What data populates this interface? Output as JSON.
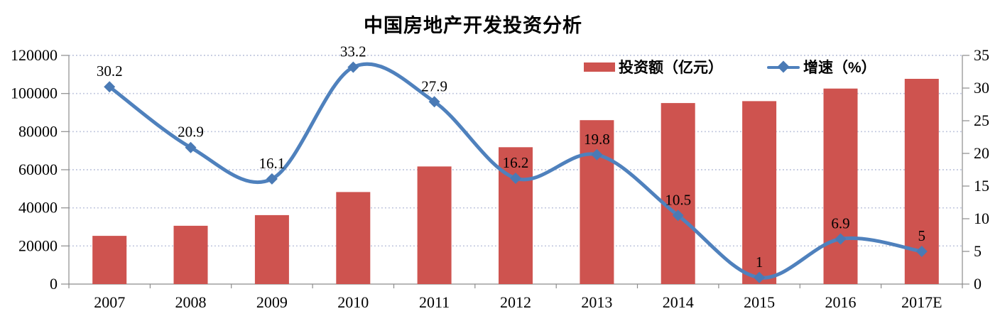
{
  "chart_data": {
    "type": "combo-bar-line",
    "title": "中国房地产开发投资分析",
    "categories": [
      "2007",
      "2008",
      "2009",
      "2010",
      "2011",
      "2012",
      "2013",
      "2014",
      "2015",
      "2016",
      "2017E"
    ],
    "series": [
      {
        "name": "投资额（亿元）",
        "type": "bar",
        "axis": "left",
        "color": "#CE534F",
        "values": [
          25300,
          30600,
          36200,
          48300,
          61700,
          71800,
          86000,
          95000,
          96000,
          102600,
          107700
        ]
      },
      {
        "name": "增速（%）",
        "type": "line",
        "axis": "right",
        "color": "#4F81BD",
        "marker": "diamond",
        "marker_color": "#4A7AB5",
        "values": [
          30.2,
          20.9,
          16.1,
          33.2,
          27.9,
          16.2,
          19.8,
          10.5,
          1,
          6.9,
          5
        ],
        "point_labels": [
          "30.2",
          "20.9",
          "16.1",
          "33.2",
          "27.9",
          "16.2",
          "19.8",
          "10.5",
          "1",
          "6.9",
          "5"
        ]
      }
    ],
    "left_axis": {
      "min": 0,
      "max": 120000,
      "step": 20000,
      "tick_labels": [
        "0",
        "20000",
        "40000",
        "60000",
        "80000",
        "100000",
        "120000"
      ]
    },
    "right_axis": {
      "min": 0,
      "max": 35,
      "step": 5,
      "tick_labels": [
        "0",
        "5",
        "10",
        "15",
        "20",
        "25",
        "30",
        "35"
      ]
    },
    "grid": "horizontal-dotted",
    "grid_color": "#BCC3DC",
    "axis_color": "#8C8C8C",
    "legend_position": "top-right-inside"
  }
}
